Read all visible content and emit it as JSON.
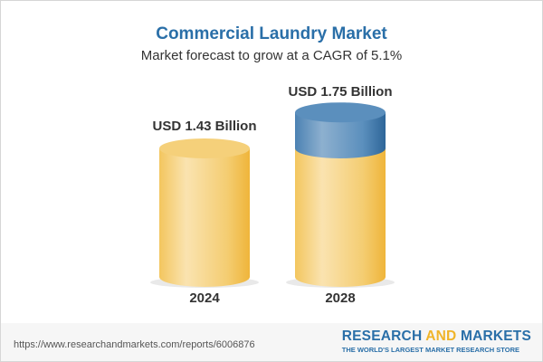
{
  "chart_data": {
    "type": "bar",
    "title": "Commercial Laundry Market",
    "subtitle": "Market forecast to grow at a CAGR of 5.1%",
    "categories": [
      "2024",
      "2028"
    ],
    "values": [
      1.43,
      1.75
    ],
    "data_labels": [
      "USD 1.43 Billion",
      "USD 1.75 Billion"
    ],
    "unit": "USD Billion",
    "colors": {
      "base": "#f2c55c",
      "growth": "#4f86b5",
      "title": "#2a6fa8"
    }
  },
  "footer": {
    "url": "https://www.researchandmarkets.com/reports/6006876",
    "logo_part1": "RESEARCH ",
    "logo_part2": "AND",
    "logo_part3": " MARKETS",
    "tagline": "THE WORLD'S LARGEST MARKET RESEARCH STORE"
  }
}
